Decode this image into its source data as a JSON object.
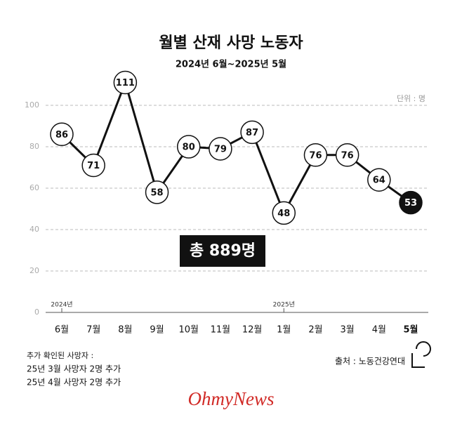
{
  "chart_data": {
    "type": "line",
    "title": "월별 산재 사망 노동자",
    "subtitle": "2024년 6월~2025년 5월",
    "unit_label": "단위 : 명",
    "categories": [
      "6월",
      "7월",
      "8월",
      "9월",
      "10월",
      "11월",
      "12월",
      "1월",
      "2월",
      "3월",
      "4월",
      "5월"
    ],
    "category_groups": [
      "2024년",
      null,
      null,
      null,
      null,
      null,
      null,
      "2025년",
      null,
      null,
      null,
      null
    ],
    "values": [
      86,
      71,
      111,
      58,
      80,
      79,
      87,
      48,
      76,
      76,
      64,
      53
    ],
    "color": "#111111",
    "ylim": [
      0,
      100
    ],
    "yticks": [
      0,
      20,
      40,
      60,
      80,
      100
    ],
    "grid": true,
    "annotation": "총 889명",
    "notes": [
      "추가 확인된 사망자 :",
      "25년 3월 사망자 2명 추가",
      "25년 4월 사망자 2명 추가"
    ],
    "source": "출처 : 노동건강연대",
    "logo": "OhmyNews"
  }
}
